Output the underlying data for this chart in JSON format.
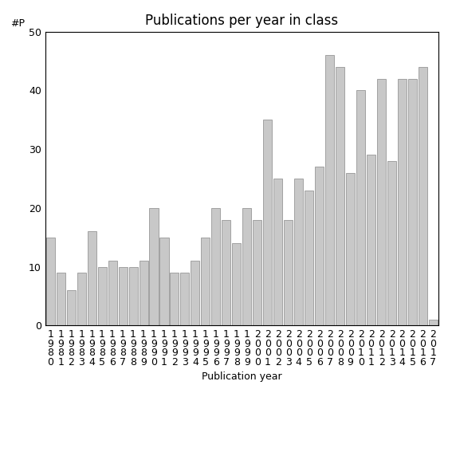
{
  "title": "Publications per year in class",
  "xlabel": "Publication year",
  "ylabel": "#P",
  "year_labels": [
    "1980",
    "1981",
    "1982",
    "1983",
    "1984",
    "1985",
    "1986",
    "1987",
    "1988",
    "1989",
    "1990",
    "1991",
    "1992",
    "1993",
    "1994",
    "1995",
    "1996",
    "1997",
    "1998",
    "1999",
    "2000",
    "2001",
    "2002",
    "2003",
    "2004",
    "2005",
    "2006",
    "2007",
    "2008",
    "2009",
    "2010",
    "2011",
    "2012",
    "2013",
    "2014",
    "2015",
    "2016",
    "2017"
  ],
  "values": [
    15,
    9,
    6,
    9,
    16,
    10,
    11,
    10,
    10,
    11,
    20,
    15,
    9,
    9,
    11,
    15,
    20,
    18,
    14,
    20,
    18,
    35,
    25,
    18,
    25,
    23,
    27,
    46,
    44,
    26,
    40,
    29,
    42,
    28,
    42,
    42,
    44,
    1
  ],
  "bar_color": "#c8c8c8",
  "bar_edge_color": "#888888",
  "ylim": [
    0,
    50
  ],
  "yticks": [
    0,
    10,
    20,
    30,
    40,
    50
  ],
  "title_fontsize": 12,
  "label_fontsize": 9,
  "tick_fontsize": 9
}
